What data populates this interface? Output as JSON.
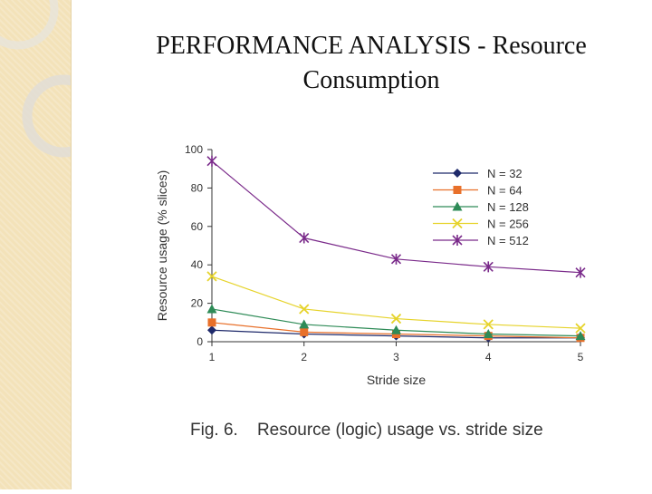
{
  "slide": {
    "title_line1": "PERFORMANCE ANALYSIS - Resource",
    "title_line2": "Consumption",
    "caption_fig": "Fig. 6.",
    "caption_text": "Resource (logic) usage vs. stride size"
  },
  "chart_data": {
    "type": "line",
    "title": "",
    "xlabel": "Stride size",
    "ylabel": "Resource usage (% slices)",
    "x": [
      1,
      2,
      3,
      4,
      5
    ],
    "xlim": [
      1,
      5
    ],
    "ylim": [
      0,
      100
    ],
    "yticks": [
      0,
      20,
      40,
      60,
      80,
      100
    ],
    "grid": false,
    "legend_position": "top-right",
    "series": [
      {
        "name": "N = 32",
        "values": [
          6,
          4,
          3,
          2,
          2
        ],
        "color": "#1f2a6b",
        "marker": "diamond"
      },
      {
        "name": "N = 64",
        "values": [
          10,
          5,
          4,
          3,
          2
        ],
        "color": "#e8702a",
        "marker": "square"
      },
      {
        "name": "N = 128",
        "values": [
          17,
          9,
          6,
          4,
          3
        ],
        "color": "#2e8b57",
        "marker": "triangle"
      },
      {
        "name": "N = 256",
        "values": [
          34,
          17,
          12,
          9,
          7
        ],
        "color": "#e6d32a",
        "marker": "x"
      },
      {
        "name": "N = 512",
        "values": [
          94,
          54,
          43,
          39,
          36
        ],
        "color": "#7a2a8a",
        "marker": "star"
      }
    ]
  }
}
